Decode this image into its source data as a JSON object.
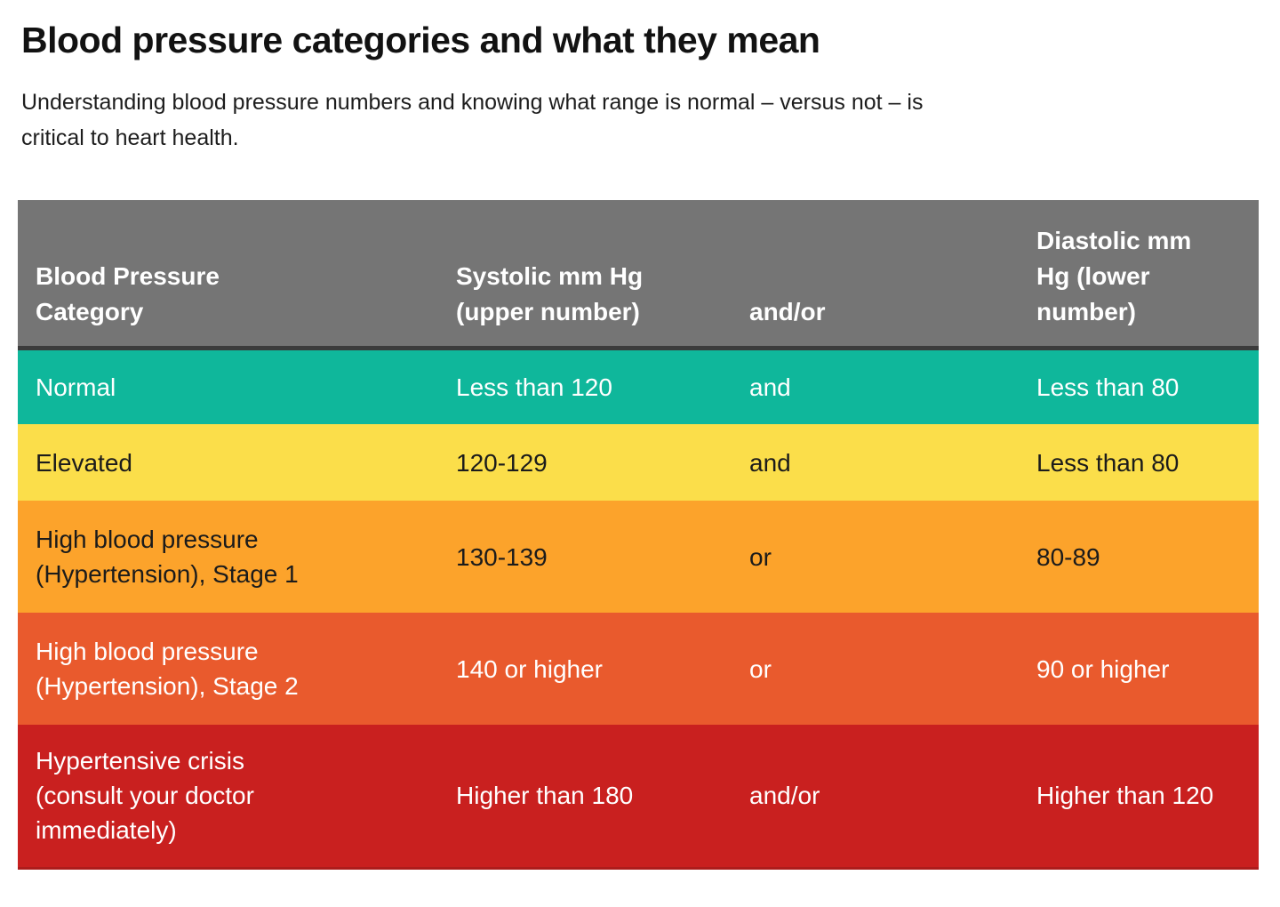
{
  "page": {
    "title": "Blood pressure categories and what they mean",
    "subtitle": "Understanding blood pressure numbers and knowing what range is normal – versus not – is\ncritical to heart health."
  },
  "table": {
    "header": {
      "bg": "#757575",
      "text_color": "#ffffff",
      "columns": [
        "Blood Pressure\nCategory",
        "Systolic mm Hg\n(upper number)",
        "and/or",
        "Diastolic mm\nHg (lower\nnumber)"
      ]
    },
    "rows": [
      {
        "category": "Normal",
        "systolic": "Less than 120",
        "connector": "and",
        "diastolic": "Less than 80",
        "bg": "#0fb79b",
        "text_color": "#ffffff"
      },
      {
        "category": "Elevated",
        "systolic": "120-129",
        "connector": "and",
        "diastolic": "Less than 80",
        "bg": "#fbde4a",
        "text_color": "#1b1b1b"
      },
      {
        "category": "High blood pressure\n(Hypertension), Stage 1",
        "systolic": "130-139",
        "connector": "or",
        "diastolic": "80-89",
        "bg": "#fca32b",
        "text_color": "#1b1b1b"
      },
      {
        "category": "High blood pressure\n(Hypertension), Stage 2",
        "systolic": "140 or higher",
        "connector": "or",
        "diastolic": "90 or higher",
        "bg": "#e95a2d",
        "text_color": "#ffffff"
      },
      {
        "category": "Hypertensive crisis\n(consult your doctor\nimmediately)",
        "systolic": "Higher than 180",
        "connector": "and/or",
        "diastolic": "Higher than 120",
        "bg": "#c9201f",
        "text_color": "#ffffff"
      }
    ]
  },
  "chart_data": {
    "type": "table",
    "title": "Blood pressure categories and what they mean",
    "columns": [
      "Blood Pressure Category",
      "Systolic mm Hg (upper number)",
      "and/or",
      "Diastolic mm Hg (lower number)"
    ],
    "rows": [
      [
        "Normal",
        "Less than 120",
        "and",
        "Less than 80"
      ],
      [
        "Elevated",
        "120-129",
        "and",
        "Less than 80"
      ],
      [
        "High blood pressure (Hypertension), Stage 1",
        "130-139",
        "or",
        "80-89"
      ],
      [
        "High blood pressure (Hypertension), Stage 2",
        "140 or higher",
        "or",
        "90 or higher"
      ],
      [
        "Hypertensive crisis (consult your doctor immediately)",
        "Higher than 180",
        "and/or",
        "Higher than 120"
      ]
    ],
    "row_colors": [
      "#0fb79b",
      "#fbde4a",
      "#fca32b",
      "#e95a2d",
      "#c9201f"
    ],
    "header_color": "#757575"
  }
}
